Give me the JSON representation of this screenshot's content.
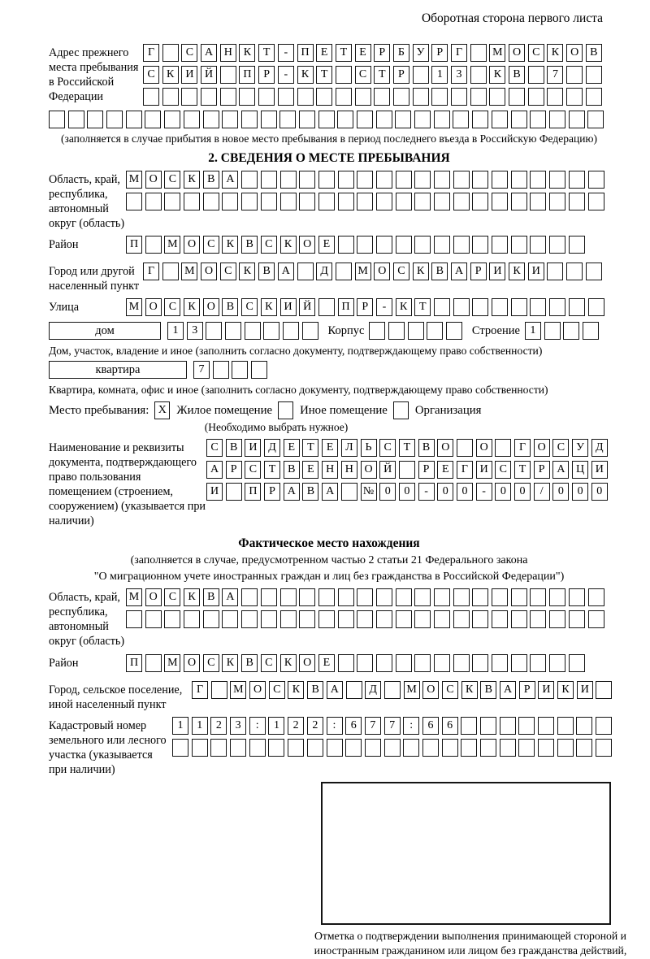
{
  "colors": {
    "paper": "#ffffff",
    "ink": "#000000"
  },
  "page": {
    "side_note": "Оборотная сторона первого листа"
  },
  "prev_address": {
    "label": "Адрес прежнего места пребывания в Российской Федерации",
    "rows": [
      {
        "text": "Г САНКТ-ПЕТЕРБУРГ МОСКОВ",
        "len": 24
      },
      {
        "text": "СКИЙ ПР-КТ СТР 13 КВ 7",
        "len": 24
      },
      {
        "text": "",
        "len": 24
      }
    ],
    "full_row": {
      "text": "",
      "len": 29
    },
    "note": "(заполняется в случае прибытия в новое место пребывания в период последнего въезда в Российскую Федерацию)"
  },
  "section2": {
    "title": "2. СВЕДЕНИЯ О МЕСТЕ ПРЕБЫВАНИЯ",
    "oblast": {
      "label": "Область, край, республика, автономный округ (область)",
      "rows": [
        {
          "text": "МОСКВА",
          "len": 25
        },
        {
          "text": "",
          "len": 25
        }
      ]
    },
    "raion": {
      "label": "Район",
      "row": {
        "text": "П МОСКВСКОЕ",
        "len": 24
      }
    },
    "gorod": {
      "label": "Город или другой населенный пункт",
      "row": {
        "text": "Г МОСКВА Д МОСКВАРИКИ",
        "len": 24
      }
    },
    "ulitsa": {
      "label": "Улица",
      "row": {
        "text": "МОСКОВСКИЙ ПР-КТ",
        "len": 25
      }
    },
    "dom": {
      "box_label": "дом",
      "cells": {
        "text": "13",
        "len": 8
      },
      "korpus_label": "Корпус",
      "korpus_cells": {
        "text": "",
        "len": 5
      },
      "stroenie_label": "Строение",
      "stroenie_cells": {
        "text": "1",
        "len": 4
      }
    },
    "dom_caption": "Дом, участок, владение и иное (заполнить согласно документу, подтверждающему право собственности)",
    "kvartira": {
      "box_label": "квартира",
      "cells": {
        "text": "7",
        "len": 4
      }
    },
    "kvartira_caption": "Квартира, комната, офис и иное (заполнить согласно документу, подтверждающему право собственности)",
    "mesto": {
      "label": "Место пребывания:",
      "options": [
        {
          "mark": "Х",
          "label": "Жилое помещение"
        },
        {
          "mark": "",
          "label": "Иное помещение"
        },
        {
          "mark": "",
          "label": "Организация"
        }
      ],
      "hint": "(Необходимо выбрать нужное)"
    },
    "document": {
      "label": "Наименование и реквизиты документа, подтверждающего право пользования помещением (строением, сооружением) (указывается при наличии)",
      "rows": [
        {
          "text": "СВИДЕТЕЛЬСТВО О ГОСУД",
          "len": 21
        },
        {
          "text": "АРСТВЕННОЙ РЕГИСТРАЦИ",
          "len": 21
        },
        {
          "text": "И ПРАВА №00-00-00/000",
          "len": 21
        }
      ]
    }
  },
  "fact": {
    "title": "Фактическое место нахождения",
    "note_line1": "(заполняется в случае, предусмотренном частью 2 статьи 21 Федерального закона",
    "note_line2": "\"О миграционном учете иностранных граждан и лиц без гражданства в Российской Федерации\")",
    "oblast": {
      "label": "Область, край, республика, автономный округ (область)",
      "rows": [
        {
          "text": "МОСКВА",
          "len": 25
        },
        {
          "text": "",
          "len": 25
        }
      ]
    },
    "raion": {
      "label": "Район",
      "row": {
        "text": "П МОСКВСКОЕ",
        "len": 24
      }
    },
    "gorod": {
      "label": "Город, сельское поселение, иной населенный пункт",
      "row": {
        "text": "Г МОСКВА Д МОСКВАРИКИ",
        "len": 22
      }
    },
    "kadastr": {
      "label": "Кадастровый номер земельного или лесного участка (указывается при наличии)",
      "rows": [
        {
          "text": "1123:122:677:66",
          "len": 23
        },
        {
          "text": "",
          "len": 23
        }
      ]
    },
    "stamp_caption": "Отметка о подтверждении выполнения принимающей стороной и иностранным гражданином или лицом без гражданства действий, необходимых для его постановки на учет по месту пребывания"
  }
}
